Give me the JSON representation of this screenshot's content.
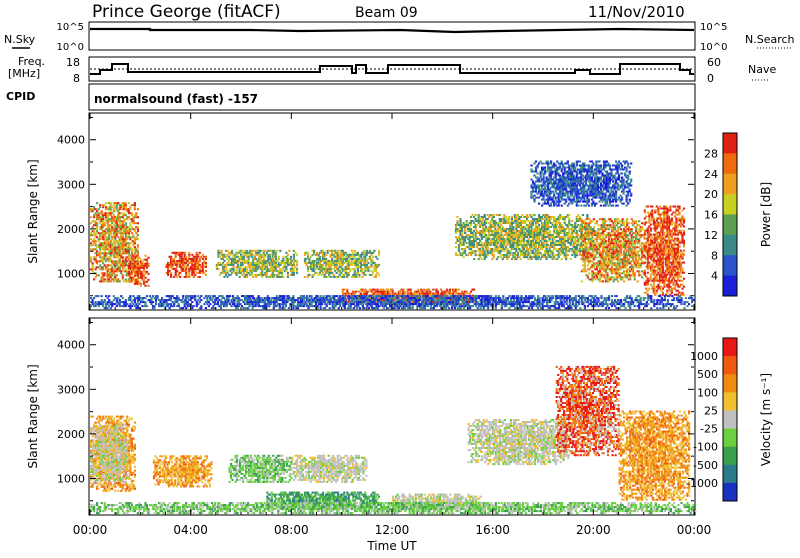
{
  "header": {
    "station": "Prince George (fitACF)",
    "beam": "Beam 09",
    "date": "11/Nov/2010"
  },
  "status_panels": {
    "nsky_label": "N.Sky",
    "nsky_ticks": [
      "10^5",
      "10^0"
    ],
    "nsearch_label": "N.Search",
    "nsearch_ticks": [
      "10^5",
      "10^0"
    ],
    "freq_label": "Freq.",
    "freq_unit": "[MHz]",
    "freq_ticks": [
      "18",
      "8"
    ],
    "nave_label": "Nave",
    "nave_ticks": [
      "60",
      "0"
    ],
    "cpid_label": "CPID",
    "cpid_text": "normalsound (fast) -157"
  },
  "chart_data": [
    {
      "type": "heatmap",
      "title": "",
      "variable": "Power",
      "ylabel": "Slant Range [km]",
      "yticks": [
        1000,
        2000,
        3000,
        4000
      ],
      "ylim": [
        180,
        4600
      ],
      "xlabel": "",
      "xlim_hours": [
        0,
        24
      ],
      "colorbar": {
        "label": "Power [dB]",
        "ticks": [
          "4",
          "8",
          "12",
          "16",
          "20",
          "24",
          "28"
        ],
        "colors": [
          "#1a1fd8",
          "#2a55c8",
          "#3a8a8a",
          "#5aa050",
          "#c8d020",
          "#f0a020",
          "#f06a10",
          "#e02010"
        ]
      },
      "echo_regions": [
        {
          "t0": 0.0,
          "t1": 1.9,
          "r0": 800,
          "r1": 2600,
          "level": "high"
        },
        {
          "t0": 1.5,
          "t1": 2.3,
          "r0": 700,
          "r1": 1400,
          "level": "max"
        },
        {
          "t0": 3.0,
          "t1": 4.6,
          "r0": 900,
          "r1": 1450,
          "level": "max"
        },
        {
          "t0": 5.0,
          "t1": 8.2,
          "r0": 900,
          "r1": 1500,
          "level": "mid"
        },
        {
          "t0": 8.5,
          "t1": 11.5,
          "r0": 900,
          "r1": 1500,
          "level": "mid"
        },
        {
          "t0": 10.0,
          "t1": 15.3,
          "r0": 300,
          "r1": 650,
          "level": "max"
        },
        {
          "t0": 14.5,
          "t1": 20.0,
          "r0": 1300,
          "r1": 2300,
          "level": "mid"
        },
        {
          "t0": 19.5,
          "t1": 22.0,
          "r0": 800,
          "r1": 2200,
          "level": "high"
        },
        {
          "t0": 22.0,
          "t1": 23.6,
          "r0": 500,
          "r1": 2500,
          "level": "max"
        },
        {
          "t0": 0.0,
          "t1": 24.0,
          "r0": 200,
          "r1": 500,
          "level": "low"
        },
        {
          "t0": 17.5,
          "t1": 21.5,
          "r0": 2500,
          "r1": 3500,
          "level": "low"
        }
      ]
    },
    {
      "type": "heatmap",
      "title": "",
      "variable": "Velocity",
      "ylabel": "Slant Range [km]",
      "yticks": [
        1000,
        2000,
        3000,
        4000
      ],
      "ylim": [
        180,
        4600
      ],
      "xlabel": "Time UT",
      "xticks": [
        "00:00",
        "04:00",
        "08:00",
        "12:00",
        "16:00",
        "20:00",
        "00:00"
      ],
      "xlim_hours": [
        0,
        24
      ],
      "colorbar": {
        "label": "Velocity [m s⁻¹]",
        "ticks": [
          "1000",
          "500",
          "100",
          "25",
          "-25",
          "-100",
          "-500",
          "-1000"
        ],
        "colors": [
          "#1a30c0",
          "#2a7a8a",
          "#3aa050",
          "#6ad040",
          "#c0c0c0",
          "#f0c030",
          "#f08a10",
          "#f05a10",
          "#e81818"
        ]
      },
      "echo_regions": [
        {
          "t0": 0.0,
          "t1": 1.8,
          "r0": 700,
          "r1": 2400,
          "level": "neg-mid"
        },
        {
          "t0": 0.0,
          "t1": 1.5,
          "r0": 900,
          "r1": 2200,
          "level": "zero"
        },
        {
          "t0": 2.5,
          "t1": 4.8,
          "r0": 800,
          "r1": 1500,
          "level": "neg-mid"
        },
        {
          "t0": 5.5,
          "t1": 8.0,
          "r0": 900,
          "r1": 1500,
          "level": "pos-low"
        },
        {
          "t0": 7.0,
          "t1": 11.5,
          "r0": 300,
          "r1": 700,
          "level": "pos-mid"
        },
        {
          "t0": 8.0,
          "t1": 11.0,
          "r0": 900,
          "r1": 1500,
          "level": "zero"
        },
        {
          "t0": 12.0,
          "t1": 15.5,
          "r0": 300,
          "r1": 650,
          "level": "zero"
        },
        {
          "t0": 15.0,
          "t1": 19.0,
          "r0": 1300,
          "r1": 2300,
          "level": "zero"
        },
        {
          "t0": 18.5,
          "t1": 21.0,
          "r0": 1500,
          "r1": 3500,
          "level": "neg-high"
        },
        {
          "t0": 21.0,
          "t1": 23.8,
          "r0": 500,
          "r1": 2500,
          "level": "neg-mid"
        },
        {
          "t0": 0.0,
          "t1": 24.0,
          "r0": 200,
          "r1": 450,
          "level": "pos-low"
        }
      ]
    }
  ]
}
